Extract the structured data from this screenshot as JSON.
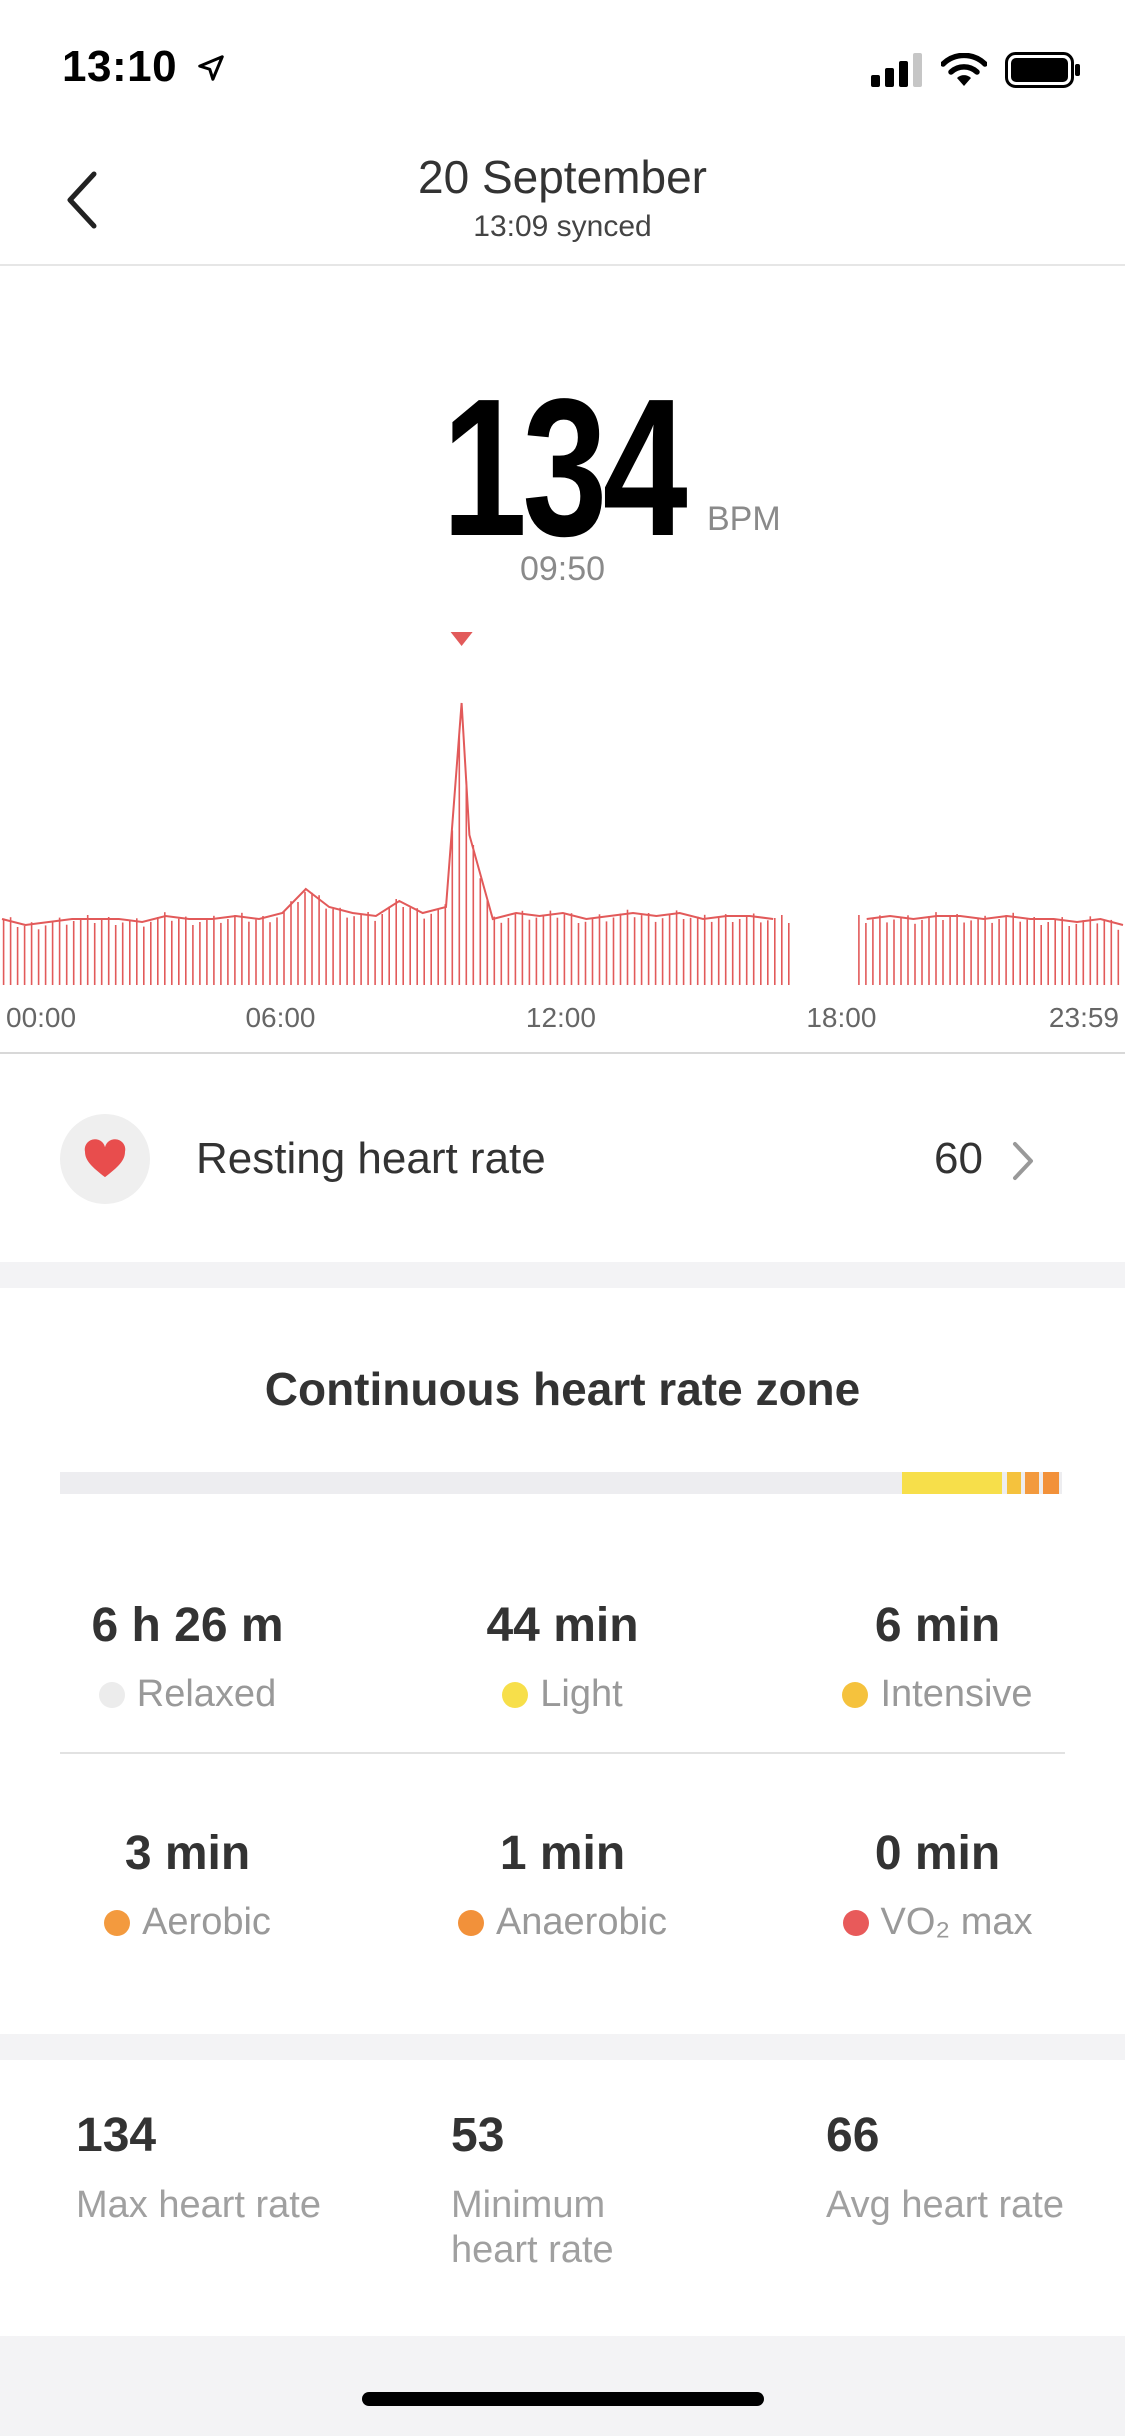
{
  "status_bar": {
    "time": "13:10"
  },
  "header": {
    "title": "20 September",
    "subtitle": "13:09 synced"
  },
  "reading": {
    "value": "134",
    "unit": "BPM",
    "time": "09:50"
  },
  "chart_data": {
    "type": "line",
    "x_ticks": [
      "00:00",
      "06:00",
      "12:00",
      "18:00",
      "23:59"
    ],
    "x_range": [
      "00:00",
      "23:59"
    ],
    "color": "#e25a5a",
    "selected": {
      "time": "09:50",
      "value": 134
    },
    "gaps": [
      [
        "16:50",
        "18:20"
      ]
    ],
    "series": [
      {
        "x": [
          "00:00",
          "00:30",
          "01:00",
          "01:30",
          "02:00",
          "02:30",
          "03:00",
          "03:30",
          "04:00",
          "04:30",
          "05:00",
          "05:30",
          "06:00",
          "06:30",
          "07:00",
          "07:30",
          "08:00",
          "08:30",
          "09:00",
          "09:30",
          "09:50",
          "10:00",
          "10:30",
          "11:00",
          "11:30",
          "12:00",
          "12:30",
          "13:00",
          "13:30",
          "14:00",
          "14:30",
          "15:00",
          "15:30",
          "16:00",
          "16:30",
          "18:30",
          "19:00",
          "19:30",
          "20:00",
          "20:30",
          "21:00",
          "21:30",
          "22:00",
          "22:30",
          "23:00",
          "23:30",
          "23:59"
        ],
        "y": [
          62,
          60,
          61,
          62,
          62,
          62,
          61,
          63,
          62,
          62,
          63,
          62,
          64,
          72,
          66,
          64,
          63,
          68,
          64,
          66,
          134,
          90,
          62,
          64,
          63,
          64,
          62,
          63,
          64,
          63,
          64,
          62,
          63,
          63,
          62,
          62,
          63,
          62,
          63,
          63,
          62,
          63,
          62,
          62,
          61,
          62,
          60
        ]
      }
    ]
  },
  "resting": {
    "label": "Resting heart rate",
    "value": "60"
  },
  "zones": {
    "title": "Continuous heart rate zone",
    "bar": [
      {
        "name": "Light",
        "start": 0.84,
        "width": 0.1,
        "color": "#f7df4a"
      },
      {
        "name": "Intensive",
        "start": 0.945,
        "width": 0.014,
        "color": "#f5c23d"
      },
      {
        "name": "Aerobic",
        "start": 0.963,
        "width": 0.014,
        "color": "#f39a3e"
      },
      {
        "name": "Anaerobic",
        "start": 0.981,
        "width": 0.016,
        "color": "#f2913a"
      }
    ],
    "items": [
      {
        "value": "6 h 26 m",
        "label": "Relaxed",
        "color": "#ececec"
      },
      {
        "value": "44  min",
        "label": "Light",
        "color": "#f7df4a"
      },
      {
        "value": "6  min",
        "label": "Intensive",
        "color": "#f5c23d"
      },
      {
        "value": "3  min",
        "label": "Aerobic",
        "color": "#f39a3e"
      },
      {
        "value": "1  min",
        "label": "Anaerobic",
        "color": "#f2913a"
      },
      {
        "value": "0  min",
        "label": "VO₂ max",
        "color": "#e85a5a"
      }
    ]
  },
  "stats": [
    {
      "value": "134",
      "label": "Max heart rate"
    },
    {
      "value": "53",
      "label": "Minimum heart rate"
    },
    {
      "value": "66",
      "label": "Avg heart rate"
    }
  ]
}
